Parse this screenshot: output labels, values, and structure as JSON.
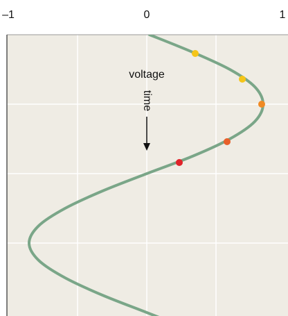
{
  "chart_data": {
    "type": "line",
    "x_axis_position": "top",
    "xlim": [
      -1,
      1
    ],
    "xticks": [
      {
        "value": -1,
        "label": "–1"
      },
      0,
      1
    ],
    "xgrid": [
      -0.5,
      0,
      0.5
    ],
    "ylim": [
      0,
      4.05
    ],
    "ygrid": [
      1,
      2,
      3
    ],
    "y_direction": "down",
    "background": "#efece4",
    "annotations": [
      "voltage",
      "time"
    ],
    "curve": {
      "color": "#7aa688",
      "y": [
        0,
        0.25,
        0.5,
        0.75,
        1,
        1.25,
        1.5,
        1.75,
        2,
        2.25,
        2.5,
        2.75,
        3,
        3.25,
        3.5,
        3.75,
        4,
        4.25
      ],
      "x": [
        0.02,
        0.33,
        0.6,
        0.78,
        0.84,
        0.78,
        0.6,
        0.33,
        0.0,
        -0.32,
        -0.59,
        -0.78,
        -0.85,
        -0.78,
        -0.59,
        -0.32,
        0.0,
        0.32
      ]
    },
    "points": {
      "y": [
        0.27,
        0.64,
        1.0,
        1.54,
        1.84
      ],
      "x": [
        0.35,
        0.69,
        0.83,
        0.58,
        0.235
      ],
      "colors": [
        "#f5c518",
        "#f5c518",
        "#f08a24",
        "#e8602a",
        "#e0232a"
      ]
    }
  }
}
